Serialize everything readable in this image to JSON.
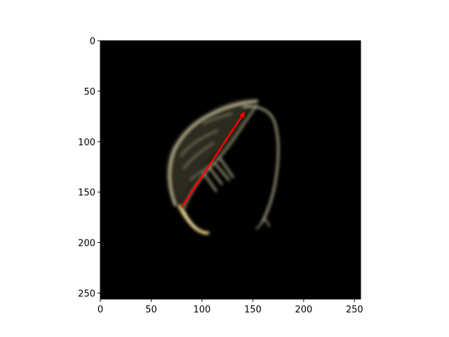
{
  "chart_data": {
    "type": "image",
    "xlim": [
      0,
      256
    ],
    "ylim": [
      256,
      0
    ],
    "x_ticks": [
      "0",
      "50",
      "100",
      "150",
      "200",
      "250"
    ],
    "y_ticks": [
      "0",
      "50",
      "100",
      "150",
      "200",
      "250"
    ],
    "annotation": {
      "type": "arrow",
      "start": [
        80,
        165
      ],
      "end": [
        141,
        72
      ],
      "color": "#ff0000"
    }
  },
  "colors": {
    "background": "#000000",
    "organism_tint": "#cfc5a2",
    "highlight": "#f2d27a"
  }
}
